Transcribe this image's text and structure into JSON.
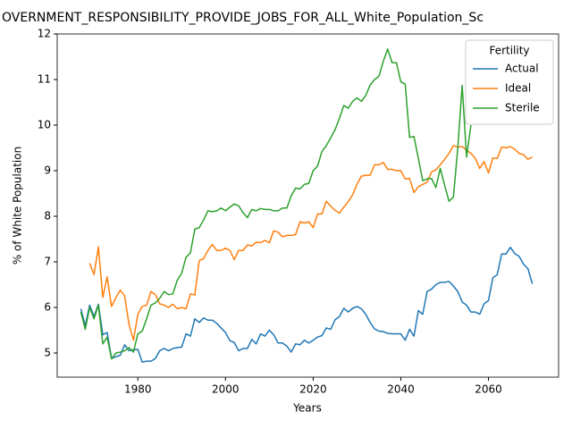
{
  "chart_data": {
    "type": "line",
    "title": "OVERNMENT_RESPONSIBILITY_PROVIDE_JOBS_FOR_ALL_White_Population_Sc",
    "xlabel": "Years",
    "ylabel": "% of White Population",
    "legend_title": "Fertility",
    "legend": "upper right",
    "grid": false,
    "xlim": [
      1961.6,
      2076
    ],
    "ylim": [
      4.47,
      12
    ],
    "xticks": [
      1980,
      2000,
      2020,
      2040,
      2060
    ],
    "yticks": [
      5,
      6,
      7,
      8,
      9,
      10,
      11,
      12
    ],
    "x": [
      1967,
      1968,
      1969,
      1970,
      1971,
      1972,
      1973,
      1974,
      1975,
      1976,
      1977,
      1978,
      1979,
      1980,
      1981,
      1982,
      1983,
      1984,
      1985,
      1986,
      1987,
      1988,
      1989,
      1990,
      1991,
      1992,
      1993,
      1994,
      1995,
      1996,
      1997,
      1998,
      1999,
      2000,
      2001,
      2002,
      2003,
      2004,
      2005,
      2006,
      2007,
      2008,
      2009,
      2010,
      2011,
      2012,
      2013,
      2014,
      2015,
      2016,
      2017,
      2018,
      2019,
      2020,
      2021,
      2022,
      2023,
      2024,
      2025,
      2026,
      2027,
      2028,
      2029,
      2030,
      2031,
      2032,
      2033,
      2034,
      2035,
      2036,
      2037,
      2038,
      2039,
      2040,
      2041,
      2042,
      2043,
      2044,
      2045,
      2046,
      2047,
      2048,
      2049,
      2050,
      2051,
      2052,
      2053,
      2054,
      2055,
      2056,
      2057,
      2058,
      2059,
      2060,
      2061,
      2062,
      2063,
      2064,
      2065,
      2066,
      2067,
      2068,
      2069,
      2070
    ],
    "series": [
      {
        "name": "Actual",
        "color": "#1f77b4",
        "values": [
          5.97,
          5.6,
          6.05,
          5.8,
          6.07,
          5.4,
          5.45,
          4.88,
          4.92,
          4.95,
          5.18,
          5.05,
          5.07,
          5.08,
          4.8,
          4.82,
          4.82,
          4.88,
          5.05,
          5.1,
          5.05,
          5.1,
          5.12,
          5.13,
          5.42,
          5.37,
          5.75,
          5.67,
          5.77,
          5.72,
          5.72,
          5.65,
          5.55,
          5.45,
          5.27,
          5.23,
          5.05,
          5.1,
          5.1,
          5.3,
          5.2,
          5.42,
          5.37,
          5.5,
          5.4,
          5.22,
          5.22,
          5.15,
          5.02,
          5.2,
          5.18,
          5.28,
          5.22,
          5.28,
          5.35,
          5.38,
          5.55,
          5.52,
          5.73,
          5.8,
          5.98,
          5.9,
          5.98,
          6.02,
          5.97,
          5.85,
          5.67,
          5.53,
          5.48,
          5.47,
          5.43,
          5.42,
          5.42,
          5.42,
          5.28,
          5.52,
          5.37,
          5.93,
          5.85,
          6.35,
          6.4,
          6.5,
          6.55,
          6.55,
          6.57,
          6.47,
          6.35,
          6.12,
          6.05,
          5.9,
          5.9,
          5.85,
          6.08,
          6.15,
          6.65,
          6.72,
          7.17,
          7.17,
          7.32,
          7.18,
          7.12,
          6.95,
          6.85,
          6.52
        ]
      },
      {
        "name": "Ideal",
        "color": "#ff7f0e",
        "values": [
          null,
          null,
          6.97,
          6.72,
          7.33,
          6.22,
          6.67,
          6.02,
          6.22,
          6.38,
          6.25,
          5.62,
          5.28,
          5.85,
          6.02,
          6.05,
          6.35,
          6.28,
          6.08,
          6.05,
          6.0,
          6.07,
          5.97,
          6.0,
          5.97,
          6.3,
          6.27,
          7.03,
          7.07,
          7.25,
          7.38,
          7.25,
          7.25,
          7.3,
          7.25,
          7.05,
          7.25,
          7.25,
          7.37,
          7.35,
          7.43,
          7.42,
          7.47,
          7.42,
          7.68,
          7.65,
          7.55,
          7.58,
          7.58,
          7.6,
          7.88,
          7.85,
          7.88,
          7.75,
          8.05,
          8.05,
          8.33,
          8.22,
          8.13,
          8.07,
          8.2,
          8.32,
          8.47,
          8.7,
          8.88,
          8.9,
          8.9,
          9.13,
          9.13,
          9.18,
          9.03,
          9.03,
          9.0,
          9.0,
          8.82,
          8.83,
          8.52,
          8.65,
          8.7,
          8.75,
          8.97,
          9.02,
          9.13,
          9.25,
          9.38,
          9.55,
          9.52,
          9.53,
          9.45,
          9.38,
          9.27,
          9.05,
          9.2,
          8.95,
          9.28,
          9.27,
          9.52,
          9.5,
          9.53,
          9.47,
          9.38,
          9.35,
          9.25,
          9.3
        ]
      },
      {
        "name": "Sterile",
        "color": "#2ca02c",
        "values": [
          5.9,
          5.52,
          6.0,
          5.75,
          6.05,
          5.2,
          5.35,
          4.87,
          5.0,
          5.02,
          5.05,
          5.12,
          5.02,
          5.42,
          5.48,
          5.75,
          6.05,
          6.1,
          6.2,
          6.35,
          6.28,
          6.3,
          6.6,
          6.75,
          7.1,
          7.2,
          7.72,
          7.75,
          7.92,
          8.12,
          8.1,
          8.12,
          8.18,
          8.12,
          8.2,
          8.27,
          8.23,
          8.08,
          7.97,
          8.15,
          8.12,
          8.17,
          8.15,
          8.15,
          8.12,
          8.12,
          8.18,
          8.18,
          8.45,
          8.62,
          8.6,
          8.7,
          8.72,
          9.0,
          9.1,
          9.42,
          9.55,
          9.72,
          9.9,
          10.15,
          10.43,
          10.37,
          10.52,
          10.6,
          10.52,
          10.65,
          10.88,
          11.0,
          11.07,
          11.4,
          11.67,
          11.37,
          11.37,
          10.95,
          10.9,
          9.73,
          9.75,
          9.27,
          8.78,
          8.82,
          8.83,
          8.63,
          9.05,
          8.68,
          8.33,
          8.42,
          9.5,
          10.87,
          9.3,
          10.0,
          null,
          null,
          null,
          null,
          null,
          null,
          null,
          null,
          null,
          null,
          null,
          null,
          null,
          null
        ]
      }
    ]
  }
}
